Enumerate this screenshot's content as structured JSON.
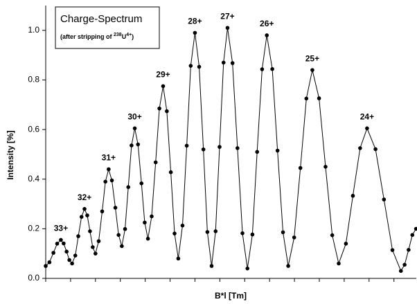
{
  "chart_data": {
    "type": "line",
    "title": "Charge-Spectrum",
    "subtitle_parts": [
      "(after stripping of ",
      "238",
      "U",
      "4+",
      ")"
    ],
    "x_label": "B*l [Tm]",
    "y_label": "Intensity [%]",
    "peak_labels": [
      "33+",
      "32+",
      "31+",
      "30+",
      "29+",
      "28+",
      "27+",
      "26+",
      "25+",
      "24+"
    ],
    "xlim": [
      0,
      14.9
    ],
    "xticks": [
      0,
      1,
      2,
      3,
      4,
      5,
      6,
      7,
      8,
      9,
      10,
      11,
      12,
      13,
      14
    ],
    "ylim": [
      0,
      1.1
    ],
    "yticks": [
      {
        "value": 0,
        "label": "0.0"
      },
      0.2,
      0.4,
      0.6,
      0.8,
      {
        "value": 1,
        "label": "1.0"
      }
    ],
    "color": "#000000",
    "x": [
      0,
      0.15,
      0.31,
      0.46,
      0.61,
      0.72,
      0.84,
      0.95,
      1.06,
      1.19,
      1.31,
      1.44,
      1.56,
      1.67,
      1.78,
      1.89,
      2.0,
      2.13,
      2.27,
      2.4,
      2.53,
      2.66,
      2.8,
      2.93,
      3.06,
      3.19,
      3.32,
      3.45,
      3.58,
      3.71,
      3.85,
      3.98,
      4.11,
      4.26,
      4.42,
      4.57,
      4.72,
      4.87,
      5.03,
      5.18,
      5.33,
      5.5,
      5.67,
      5.83,
      6.0,
      6.17,
      6.34,
      6.5,
      6.67,
      6.83,
      6.99,
      7.15,
      7.31,
      7.51,
      7.71,
      7.91,
      8.11,
      8.31,
      8.5,
      8.7,
      8.89,
      9.11,
      9.32,
      9.54,
      9.75,
      9.99,
      10.24,
      10.48,
      10.72,
      10.99,
      11.25,
      11.52,
      11.78,
      12.07,
      12.35,
      12.64,
      12.92,
      13.26,
      13.6,
      13.94,
      14.28,
      14.43,
      14.59,
      14.74,
      14.89
    ],
    "values": [
      0.05,
      0.065,
      0.103,
      0.14,
      0.155,
      0.141,
      0.108,
      0.074,
      0.06,
      0.092,
      0.17,
      0.248,
      0.28,
      0.254,
      0.19,
      0.126,
      0.1,
      0.15,
      0.27,
      0.39,
      0.44,
      0.395,
      0.285,
      0.175,
      0.13,
      0.199,
      0.368,
      0.536,
      0.605,
      0.54,
      0.383,
      0.225,
      0.16,
      0.25,
      0.468,
      0.685,
      0.775,
      0.674,
      0.428,
      0.181,
      0.08,
      0.213,
      0.535,
      0.857,
      0.99,
      0.853,
      0.52,
      0.187,
      0.05,
      0.19,
      0.53,
      0.87,
      1.01,
      0.868,
      0.525,
      0.182,
      0.04,
      0.177,
      0.51,
      0.843,
      0.98,
      0.844,
      0.515,
      0.186,
      0.05,
      0.165,
      0.445,
      0.725,
      0.84,
      0.726,
      0.45,
      0.174,
      0.06,
      0.14,
      0.333,
      0.525,
      0.605,
      0.521,
      0.318,
      0.114,
      0.03,
      0.055,
      0.115,
      0.175,
      0.2
    ]
  }
}
